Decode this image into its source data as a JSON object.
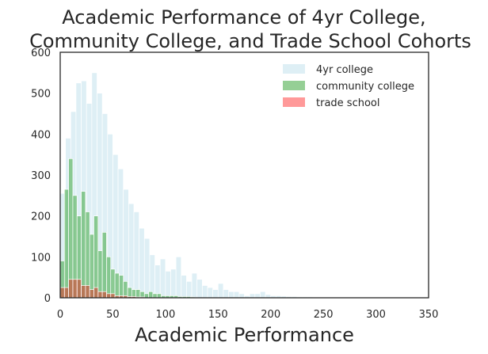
{
  "chart_data": {
    "type": "bar",
    "subtype": "overlaid-histogram",
    "title": "Academic Performance of 4yr College,\nCommunity College, and Trade School Cohorts",
    "title_lines": [
      "Academic Performance of 4yr College,",
      "Community College, and Trade School Cohorts"
    ],
    "xlabel": "Academic Performance",
    "ylabel": "",
    "xlim": [
      0,
      350
    ],
    "ylim": [
      0,
      600
    ],
    "xticks": [
      0,
      50,
      100,
      150,
      200,
      250,
      300,
      350
    ],
    "yticks": [
      0,
      100,
      200,
      300,
      400,
      500,
      600
    ],
    "grid": false,
    "legend_position": "top-right",
    "series": [
      {
        "name": "4yr college",
        "color": "#add8e6",
        "opacity": 0.4,
        "bin_width": 5,
        "bin_start": 0,
        "counts": [
          255,
          390,
          455,
          525,
          530,
          475,
          550,
          500,
          450,
          400,
          350,
          315,
          265,
          230,
          210,
          170,
          145,
          105,
          80,
          95,
          65,
          70,
          100,
          55,
          40,
          60,
          45,
          30,
          25,
          20,
          35,
          20,
          15,
          15,
          10,
          5,
          10,
          10,
          15,
          8,
          5,
          5,
          4,
          3,
          3,
          2,
          2,
          2,
          1,
          1
        ]
      },
      {
        "name": "community college",
        "color": "#2ca02c",
        "opacity": 0.5,
        "bin_width": 4,
        "bin_start": 0,
        "counts": [
          90,
          265,
          340,
          250,
          200,
          260,
          210,
          155,
          200,
          115,
          160,
          100,
          70,
          60,
          55,
          40,
          25,
          20,
          20,
          15,
          10,
          15,
          10,
          10,
          5,
          5,
          5,
          5,
          3,
          3,
          3,
          2
        ]
      },
      {
        "name": "trade school",
        "color": "#ff0000",
        "opacity": 0.4,
        "bin_width": 4,
        "bin_start": 0,
        "counts": [
          25,
          25,
          45,
          45,
          45,
          30,
          30,
          20,
          25,
          15,
          15,
          10,
          10,
          5,
          5,
          5,
          3,
          3,
          2,
          2
        ]
      }
    ]
  }
}
